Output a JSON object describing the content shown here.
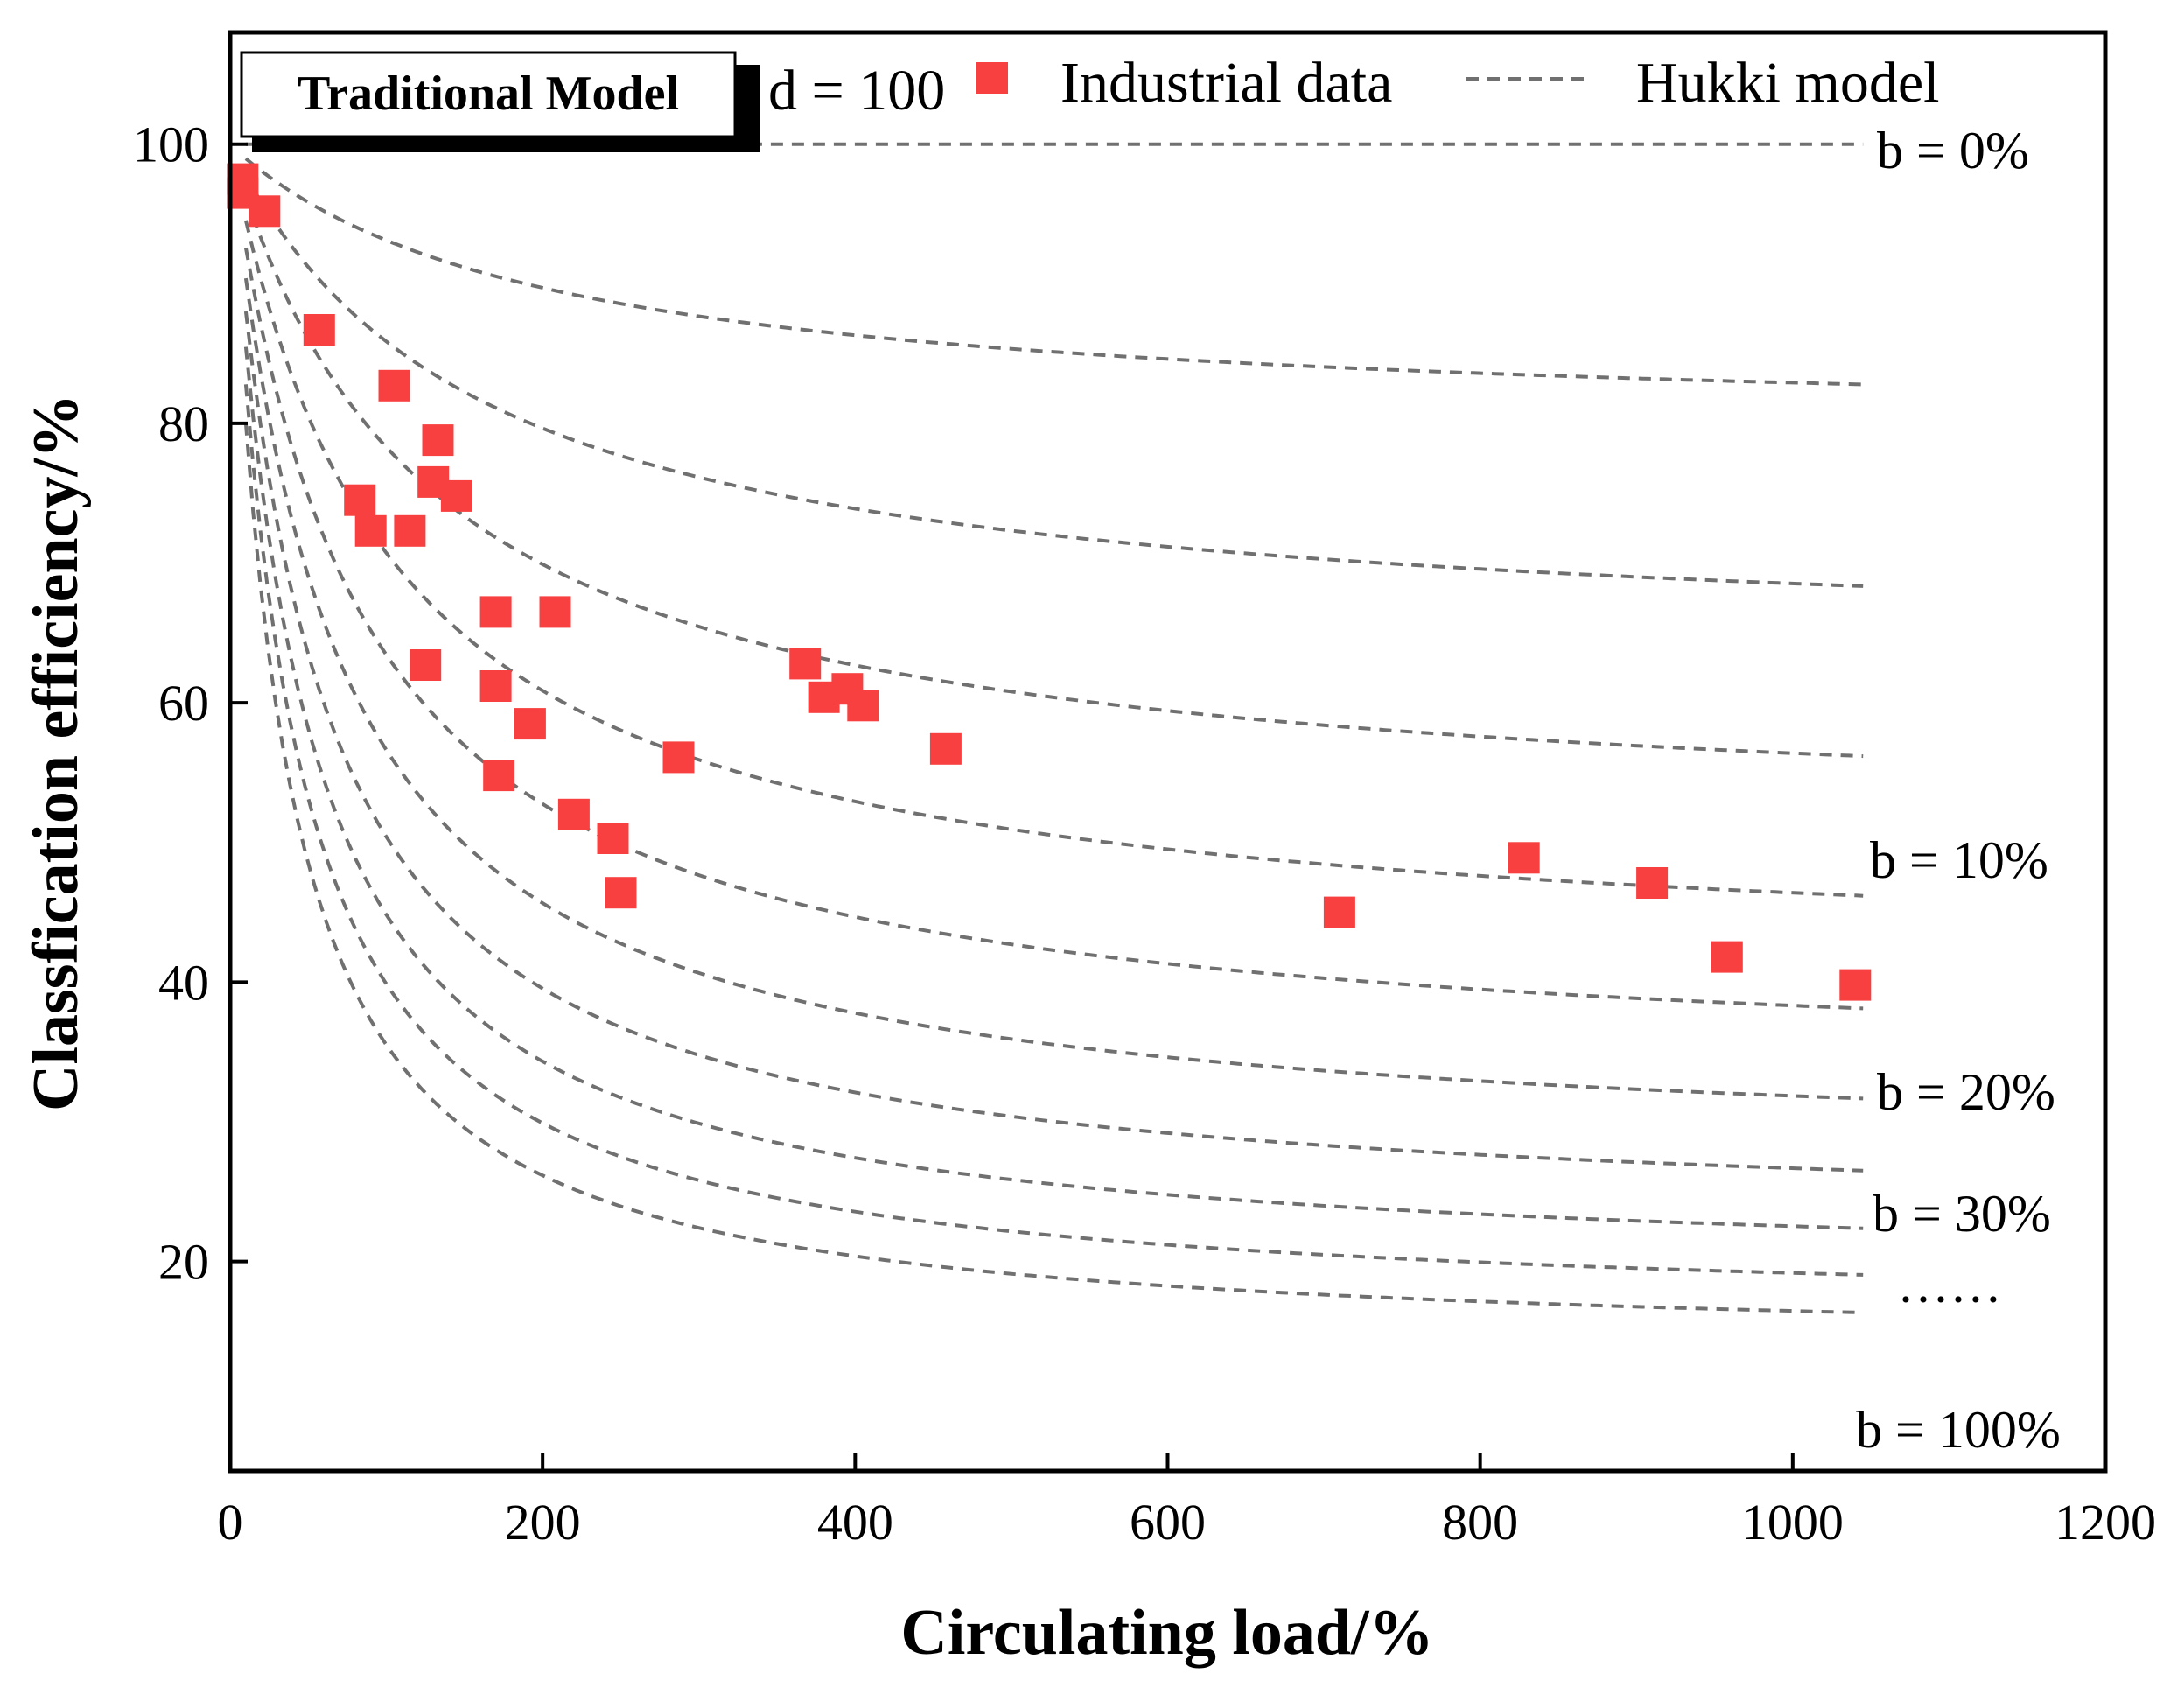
{
  "chart_data": {
    "type": "scatter",
    "title": "",
    "xlabel": "Circulating load/%",
    "ylabel": "Classfication efficiency/%",
    "xlim": [
      0,
      1200
    ],
    "ylim": [
      5,
      108
    ],
    "x_ticks": [
      0,
      200,
      400,
      600,
      800,
      1000,
      1200
    ],
    "y_ticks": [
      20,
      40,
      60,
      80,
      100
    ],
    "badge": "Traditional Model",
    "parameter_label": "d = 100",
    "legend": {
      "position": "top",
      "scatter_label": "Industrial data",
      "line_label": "Hukki model"
    },
    "colors": {
      "scatter": "#f84040",
      "curve": "#707070",
      "axis": "#000000"
    },
    "curve_labels": [
      "b = 0%",
      "b = 10%",
      "b = 20%",
      "b = 30%",
      "······",
      "b = 100%"
    ],
    "curves": [
      {
        "name": "b = 0%",
        "b": 0
      },
      {
        "name": "b = 10%",
        "b": 10
      },
      {
        "name": "b = 20%",
        "b": 20
      },
      {
        "name": "b = 30%",
        "b": 30
      },
      {
        "name": "b = 40%",
        "b": 40
      },
      {
        "name": "b = 50%",
        "b": 50
      },
      {
        "name": "b = 60%",
        "b": 60
      },
      {
        "name": "b = 70%",
        "b": 70
      },
      {
        "name": "b = 80%",
        "b": 80
      },
      {
        "name": "b = 90%",
        "b": 90
      },
      {
        "name": "b = 100%",
        "b": 100
      }
    ],
    "curve_x_range": [
      10,
      1045
    ],
    "series": [
      {
        "name": "Industrial data",
        "points": [
          {
            "x": 8,
            "y": 97.5
          },
          {
            "x": 8,
            "y": 96.5
          },
          {
            "x": 22,
            "y": 95.2
          },
          {
            "x": 57,
            "y": 86.7
          },
          {
            "x": 105,
            "y": 82.7
          },
          {
            "x": 133,
            "y": 78.8
          },
          {
            "x": 130,
            "y": 75.8
          },
          {
            "x": 145,
            "y": 74.8
          },
          {
            "x": 83,
            "y": 74.5
          },
          {
            "x": 90,
            "y": 72.3
          },
          {
            "x": 115,
            "y": 72.3
          },
          {
            "x": 170,
            "y": 66.5
          },
          {
            "x": 208,
            "y": 66.5
          },
          {
            "x": 125,
            "y": 62.7
          },
          {
            "x": 170,
            "y": 61.2
          },
          {
            "x": 192,
            "y": 58.5
          },
          {
            "x": 172,
            "y": 54.8
          },
          {
            "x": 287,
            "y": 56.1
          },
          {
            "x": 220,
            "y": 52.0
          },
          {
            "x": 245,
            "y": 50.3
          },
          {
            "x": 250,
            "y": 46.4
          },
          {
            "x": 368,
            "y": 62.8
          },
          {
            "x": 380,
            "y": 60.4
          },
          {
            "x": 395,
            "y": 61.0
          },
          {
            "x": 405,
            "y": 59.8
          },
          {
            "x": 458,
            "y": 56.7
          },
          {
            "x": 710,
            "y": 45.0
          },
          {
            "x": 828,
            "y": 48.9
          },
          {
            "x": 910,
            "y": 47.1
          },
          {
            "x": 958,
            "y": 41.8
          },
          {
            "x": 1040,
            "y": 39.8
          }
        ]
      }
    ]
  }
}
